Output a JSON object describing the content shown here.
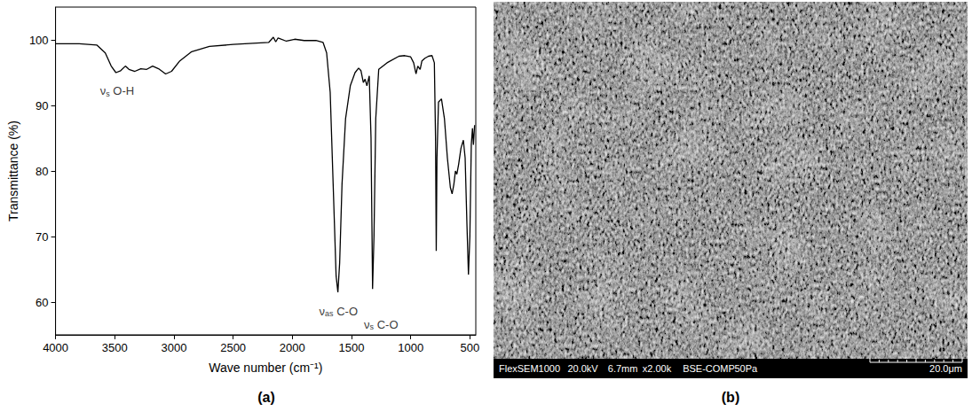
{
  "chart_data": {
    "type": "line",
    "panel": "(a)",
    "x_label": "Wave number (cm⁻¹)",
    "y_label": "Transmittance (%)",
    "xlim": [
      4000,
      450
    ],
    "xticks": [
      4000,
      3500,
      3000,
      2500,
      2000,
      1500,
      1000,
      500
    ],
    "ylim": [
      55,
      105
    ],
    "yticks": [
      60,
      70,
      80,
      90,
      100
    ],
    "grid": false,
    "color": "#000000",
    "x": [
      4000,
      3800,
      3650,
      3580,
      3530,
      3490,
      3450,
      3410,
      3380,
      3330,
      3280,
      3230,
      3180,
      3130,
      3070,
      3020,
      2950,
      2850,
      2700,
      2500,
      2300,
      2200,
      2160,
      2140,
      2120,
      2050,
      1980,
      1900,
      1800,
      1740,
      1710,
      1680,
      1655,
      1630,
      1615,
      1600,
      1580,
      1550,
      1510,
      1470,
      1440,
      1420,
      1400,
      1385,
      1370,
      1350,
      1335,
      1322,
      1310,
      1295,
      1270,
      1200,
      1100,
      1050,
      1000,
      975,
      955,
      940,
      920,
      905,
      880,
      850,
      820,
      800,
      790,
      784,
      778,
      765,
      740,
      715,
      690,
      665,
      650,
      635,
      622,
      610,
      595,
      575,
      555,
      540,
      525,
      512,
      500,
      488,
      478,
      470,
      460
    ],
    "values": [
      99.4,
      99.4,
      99.2,
      98,
      96,
      95.0,
      95.3,
      96.0,
      95.5,
      95.2,
      95.6,
      95.5,
      96,
      95.6,
      94.8,
      95.2,
      96.8,
      98.2,
      99,
      99.3,
      99.5,
      99.6,
      100.4,
      99.7,
      100.3,
      99.8,
      100.1,
      99.9,
      99.9,
      99.6,
      98,
      92,
      78,
      64,
      61.5,
      66,
      78,
      88,
      93,
      95,
      95.7,
      95.3,
      93.5,
      94,
      93,
      94.5,
      85,
      62,
      70,
      88,
      95.5,
      96.5,
      97.5,
      97.6,
      97.4,
      96.5,
      94.8,
      96,
      95.5,
      96.8,
      97.2,
      97.5,
      97.6,
      96.5,
      85,
      67.8,
      82,
      90.5,
      91,
      88,
      82,
      77.5,
      76.5,
      78,
      80,
      79.5,
      81,
      83.5,
      84.7,
      82,
      72,
      64.2,
      70,
      84,
      86.5,
      84,
      87
    ],
    "annotations": [
      {
        "parts": [
          "ν",
          "s",
          "O-H"
        ],
        "x": 3480,
        "y": 92.2
      },
      {
        "parts": [
          "ν",
          "as",
          "C-O"
        ],
        "x": 1610,
        "y": 58.6
      },
      {
        "parts": [
          "ν",
          "s",
          "C-O"
        ],
        "x": 1250,
        "y": 56.6
      }
    ]
  },
  "image_panel": {
    "panel": "(b)",
    "info_fields": [
      "FlexSEM1000",
      "20.0kV",
      "6.7mm",
      "x2.00k",
      "BSE-COMP",
      "50Pa"
    ],
    "scale_text": "20.0μm"
  }
}
